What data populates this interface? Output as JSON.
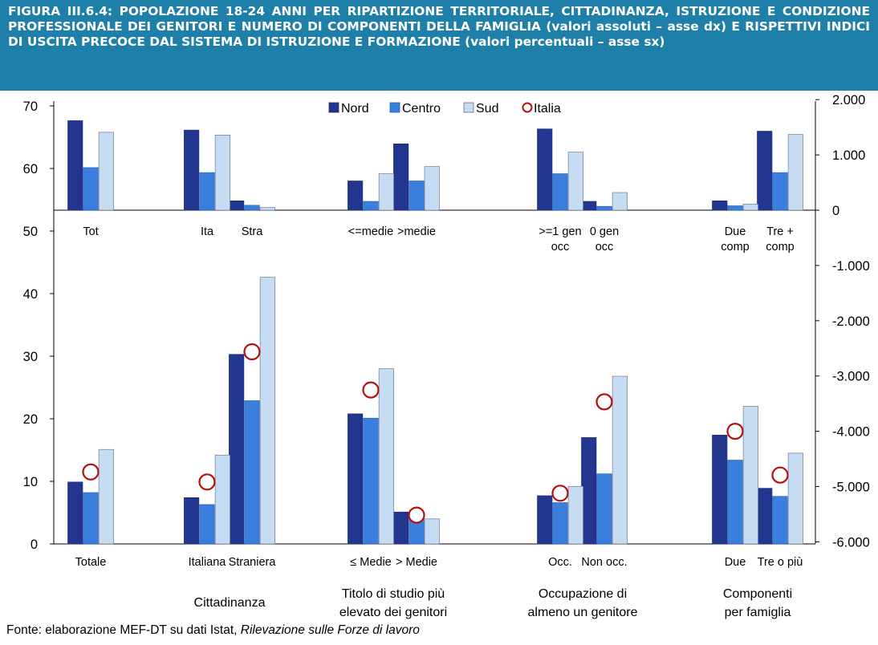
{
  "figure": {
    "title": "FIGURA III.6.4: POPOLAZIONE 18-24 ANNI PER RIPARTIZIONE TERRITORIALE, CITTADINANZA, ISTRUZIONE E CONDIZIONE PROFESSIONALE DEI GENITORI E NUMERO DI COMPONENTI DELLA FAMIGLIA (valori assoluti – asse dx) E RISPETTIVI INDICI DI USCITA PRECOCE DAL SISTEMA DI ISTRUZIONE E FORMAZIONE (valori percentuali – asse sx)",
    "source_prefix": "Fonte: elaborazione MEF-DT su dati Istat, ",
    "source_italic": "Rilevazione sulle Forze di lavoro"
  },
  "colors": {
    "nord": "#23368f",
    "centro": "#3a7fde",
    "sud": "#c5dcf3",
    "italia": "#b30f0f",
    "title_bg": "#1e7fa8"
  },
  "chart_data": {
    "type": "bar",
    "legend": {
      "position": "top-center",
      "entries": [
        {
          "name": "Nord",
          "marker": "bar"
        },
        {
          "name": "Centro",
          "marker": "bar"
        },
        {
          "name": "Sud",
          "marker": "bar"
        },
        {
          "name": "Italia",
          "marker": "circle"
        }
      ]
    },
    "axes": {
      "left": {
        "ylim": [
          0,
          70
        ],
        "ticks": [
          "0",
          "10",
          "20",
          "30",
          "40",
          "50",
          "60",
          "70"
        ]
      },
      "right": {
        "ylim": [
          -6000,
          2000
        ],
        "ticks": [
          "-6.000",
          "-5.000",
          "-4.000",
          "-3.000",
          "-2.000",
          "-1.000",
          "0",
          "1.000",
          "2.000"
        ]
      }
    },
    "categories": [
      "Totale",
      "Italiana",
      "Straniera",
      "≤ Medie",
      "> Medie",
      "Occ.",
      "Non occ.",
      "Due",
      "Tre o più"
    ],
    "top_categories": [
      "Tot",
      "Ita",
      "Stra",
      "<=medie",
      ">medie",
      ">=1 gen occ",
      "0 gen occ",
      "Due comp",
      "Tre + comp"
    ],
    "groups": [
      {
        "label": "",
        "categories": [
          "Totale"
        ]
      },
      {
        "label": "Cittadinanza",
        "categories": [
          "Italiana",
          "Straniera"
        ]
      },
      {
        "label": "Titolo di studio più elevato dei genitori",
        "categories": [
          "≤ Medie",
          "> Medie"
        ]
      },
      {
        "label": "Occupazione di almeno un genitore",
        "categories": [
          "Occ.",
          "Non occ."
        ]
      },
      {
        "label": "Componenti per famiglia",
        "categories": [
          "Due",
          "Tre o più"
        ]
      }
    ],
    "rate_series_left_axis": [
      {
        "name": "Nord",
        "values": [
          9.9,
          7.4,
          30.3,
          20.8,
          5.1,
          7.7,
          17.0,
          17.4,
          8.9
        ]
      },
      {
        "name": "Centro",
        "values": [
          8.2,
          6.3,
          22.9,
          20.1,
          3.9,
          6.6,
          11.2,
          13.4,
          7.6
        ]
      },
      {
        "name": "Sud",
        "values": [
          15.1,
          14.2,
          42.6,
          28.0,
          4.0,
          9.2,
          26.8,
          22.0,
          14.5
        ]
      },
      {
        "name": "Italia",
        "values": [
          11.5,
          9.9,
          30.7,
          24.6,
          4.6,
          8.1,
          22.7,
          18.0,
          11.0
        ]
      }
    ],
    "population_series_right_axis": [
      {
        "name": "Nord",
        "values": [
          1620,
          1450,
          170,
          530,
          1200,
          1470,
          160,
          170,
          1430
        ]
      },
      {
        "name": "Centro",
        "values": [
          770,
          680,
          90,
          160,
          530,
          660,
          70,
          80,
          680
        ]
      },
      {
        "name": "Sud",
        "values": [
          1410,
          1360,
          50,
          660,
          790,
          1050,
          320,
          110,
          1370
        ]
      }
    ]
  }
}
